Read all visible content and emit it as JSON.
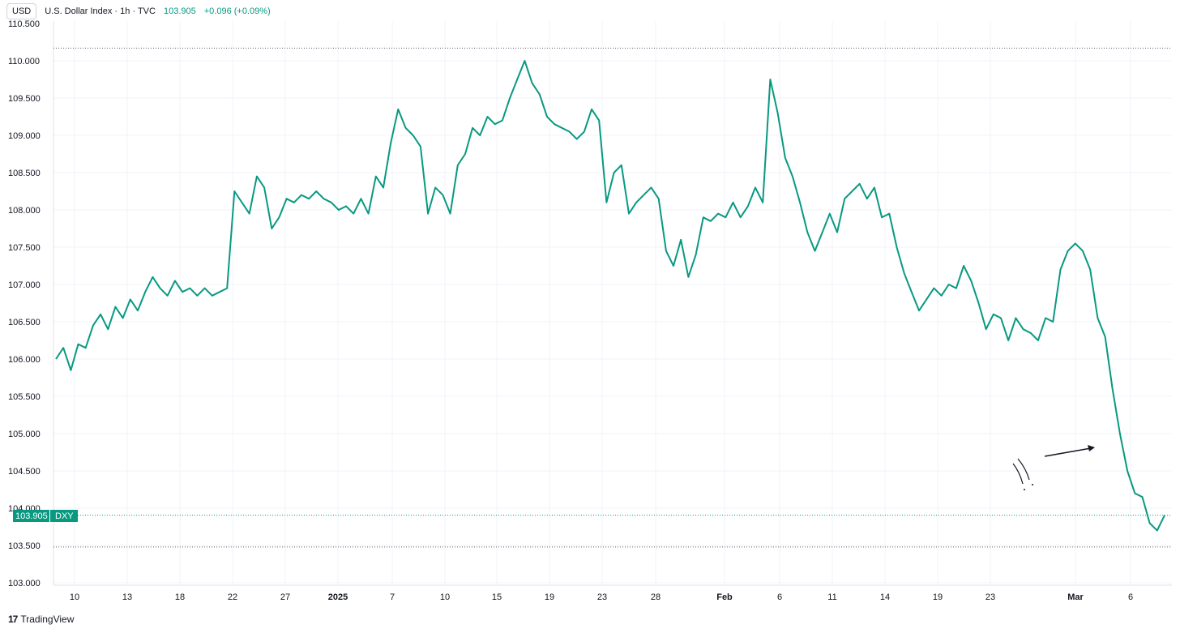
{
  "header": {
    "currency": "USD",
    "title": "U.S. Dollar Index · 1h · TVC",
    "last": "103.905",
    "change": "+0.096 (+0.09%)"
  },
  "footer": {
    "brand": "TradingView",
    "logo": "tradingview-logo-icon"
  },
  "price_label": {
    "value": "103.905",
    "symbol": "DXY",
    "color": "#089981"
  },
  "colors": {
    "line": "#089981",
    "grid": "#f0f3fa",
    "text": "#131722"
  },
  "chart_data": {
    "type": "line",
    "title": "U.S. Dollar Index · 1h · TVC",
    "xlabel": "",
    "ylabel": "",
    "ylim": [
      103.0,
      110.5
    ],
    "y_ticks": [
      "103.000",
      "103.500",
      "104.000",
      "104.500",
      "105.000",
      "105.500",
      "106.000",
      "106.500",
      "107.000",
      "107.500",
      "108.000",
      "108.500",
      "109.000",
      "109.500",
      "110.000"
    ],
    "x_ticks": [
      "10",
      "13",
      "18",
      "22",
      "27",
      "2025",
      "7",
      "10",
      "15",
      "19",
      "23",
      "28",
      "Feb",
      "6",
      "11",
      "14",
      "19",
      "23",
      "Mar",
      "6"
    ],
    "grid": true,
    "reference_lines": [
      110.17,
      103.48
    ],
    "last_value": 103.905,
    "series": [
      {
        "values": [
          106.0,
          106.15,
          105.85,
          106.2,
          106.15,
          106.45,
          106.6,
          106.4,
          106.7,
          106.55,
          106.8,
          106.65,
          106.9,
          107.1,
          106.95,
          106.85,
          107.05,
          106.9,
          106.95,
          106.85,
          106.95,
          106.85,
          106.9,
          106.95,
          108.25,
          108.1,
          107.95,
          108.45,
          108.3,
          107.75,
          107.9,
          108.15,
          108.1,
          108.2,
          108.15,
          108.25,
          108.15,
          108.1,
          108.0,
          108.05,
          107.95,
          108.15,
          107.95,
          108.45,
          108.3,
          108.9,
          109.35,
          109.1,
          109.0,
          108.85,
          107.95,
          108.3,
          108.2,
          107.95,
          108.6,
          108.75,
          109.1,
          109.0,
          109.25,
          109.15,
          109.2,
          109.5,
          109.75,
          110.0,
          109.7,
          109.55,
          109.25,
          109.15,
          109.1,
          109.05,
          108.95,
          109.05,
          109.35,
          109.2,
          108.1,
          108.5,
          108.6,
          107.95,
          108.1,
          108.2,
          108.3,
          108.15,
          107.45,
          107.25,
          107.6,
          107.1,
          107.4,
          107.9,
          107.85,
          107.95,
          107.9,
          108.1,
          107.9,
          108.05,
          108.3,
          108.1,
          109.75,
          109.3,
          108.7,
          108.45,
          108.1,
          107.7,
          107.45,
          107.7,
          107.95,
          107.7,
          108.15,
          108.25,
          108.35,
          108.15,
          108.3,
          107.9,
          107.95,
          107.5,
          107.15,
          106.9,
          106.65,
          106.8,
          106.95,
          106.85,
          107.0,
          106.95,
          107.25,
          107.05,
          106.75,
          106.4,
          106.6,
          106.55,
          106.25,
          106.55,
          106.4,
          106.35,
          106.25,
          106.55,
          106.5,
          107.2,
          107.45,
          107.55,
          107.45,
          107.2,
          106.55,
          106.3,
          105.6,
          105.0,
          104.5,
          104.2,
          104.15,
          103.8,
          103.7,
          103.905
        ]
      }
    ]
  }
}
